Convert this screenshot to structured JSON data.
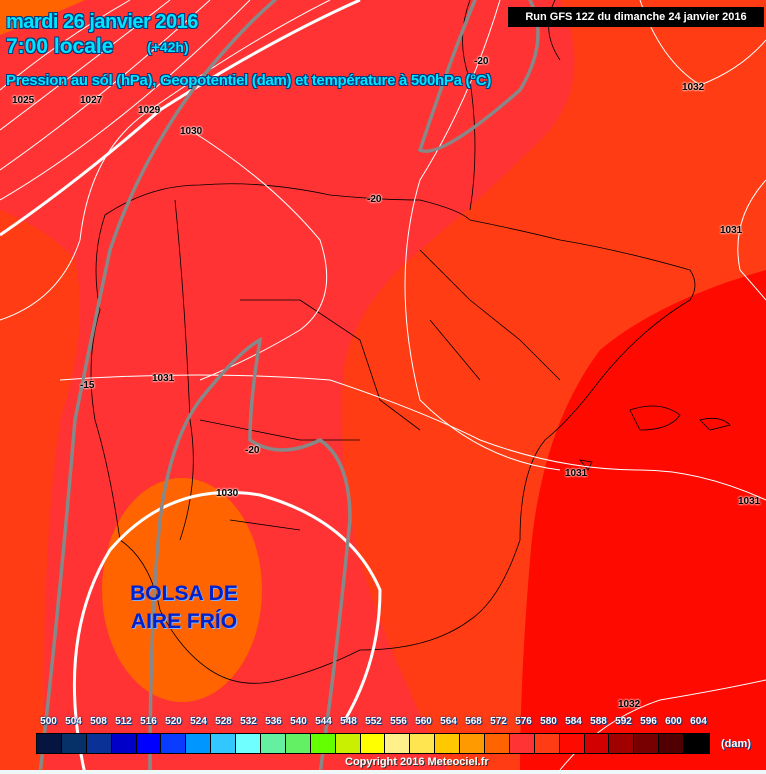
{
  "header": {
    "date": "mardi 26 janvier 2016",
    "time": "7:00 locale",
    "lead": "(+42h)",
    "description": "Pression au sól (hPa), Geopotentiel (dam) et température à 500hPa (°C)",
    "run": "Run GFS 12Z du dimanche 24 janvier 2016"
  },
  "annotation": {
    "line1": "BOLSA DE",
    "line2": "AIRE FRÍO"
  },
  "contour_labels": {
    "p1025": "1025",
    "p1027a": "1027",
    "p1029": "1029",
    "p1030a": "1030",
    "t20a": "-20",
    "p1032a": "1032",
    "t20b": "-20",
    "p1031a": "1031",
    "t15": "-15",
    "p1031b": "1031",
    "t20c": "-20",
    "p1030b": "1030",
    "p1031c": "1031",
    "p1031d": "1031",
    "p1032b": "1032"
  },
  "legend": {
    "unit": "(dam)",
    "levels": [
      "500",
      "504",
      "508",
      "512",
      "516",
      "520",
      "524",
      "528",
      "532",
      "536",
      "540",
      "544",
      "548",
      "552",
      "556",
      "560",
      "564",
      "568",
      "572",
      "576",
      "580",
      "584",
      "588",
      "592",
      "596",
      "600",
      "604"
    ],
    "colors": [
      "#061540",
      "#063068",
      "#0a3296",
      "#0000c8",
      "#0000ff",
      "#0a3cff",
      "#0096ff",
      "#32c8ff",
      "#70ffff",
      "#64f0a0",
      "#64f064",
      "#64ff00",
      "#c8f000",
      "#ffff00",
      "#fff08c",
      "#ffe650",
      "#ffc800",
      "#ff9b00",
      "#ff6400",
      "#ff3333",
      "#ff3c14",
      "#ff0a00",
      "#d20000",
      "#a00000",
      "#780000",
      "#500000",
      "#000000"
    ]
  },
  "copyright": "Copyright 2016 Meteociel.fr"
}
